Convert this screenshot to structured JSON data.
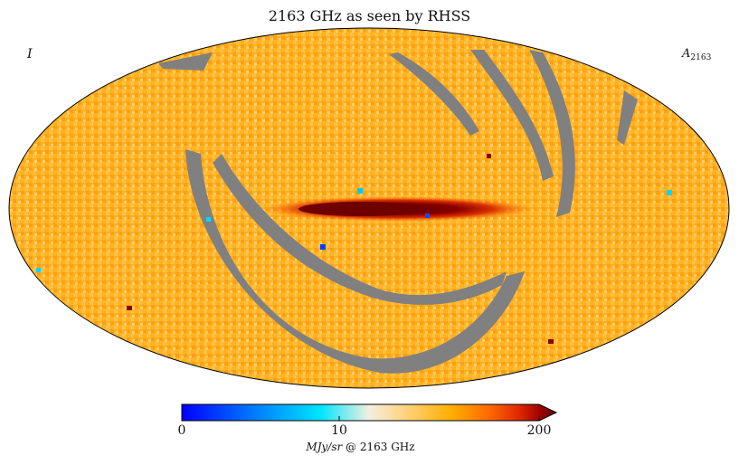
{
  "title": "2163 GHz as seen by RHSS",
  "stokes_label": "I",
  "component_label": {
    "base": "A",
    "subscript": "2163"
  },
  "colorbar": {
    "ticks": [
      "0",
      "10",
      "200"
    ],
    "unit_italic": "MJy/sr",
    "unit_rest": " @ 2163 GHz",
    "extend": "max",
    "colors": [
      "#0000ff",
      "#0080ff",
      "#00e5ff",
      "#f2efe0",
      "#ffd27a",
      "#ffae00",
      "#ff6a00",
      "#e02800",
      "#9a0000",
      "#5a0000"
    ]
  },
  "map_colors": {
    "background": "#ffb020",
    "masked": "#808080",
    "galactic_plane_core": "#6e0000",
    "galactic_plane_mid": "#d42a00",
    "galactic_plane_outer": "#ff7a00"
  }
}
